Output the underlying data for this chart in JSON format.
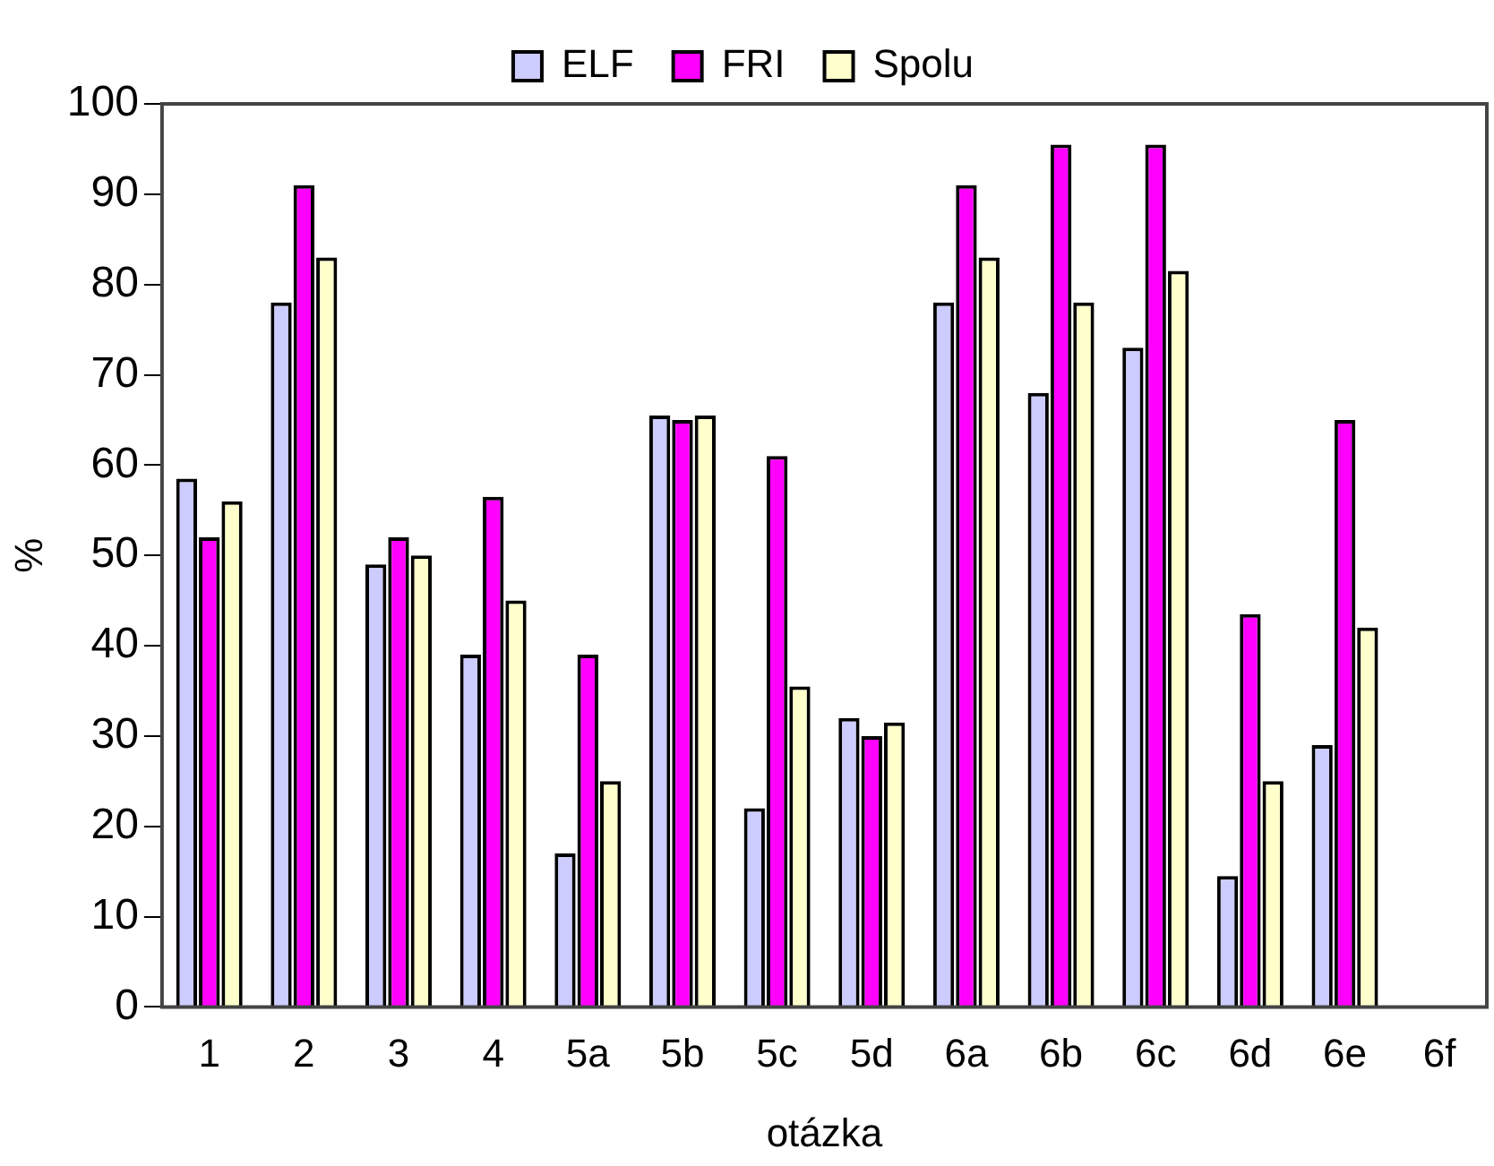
{
  "chart_data": {
    "type": "bar",
    "xlabel": "otázka",
    "ylabel": "%",
    "categories": [
      "1",
      "2",
      "3",
      "4",
      "5a",
      "5b",
      "5c",
      "5d",
      "6a",
      "6b",
      "6c",
      "6d",
      "6e",
      "6f"
    ],
    "series": [
      {
        "name": "ELF",
        "color": "#ccccff",
        "values": [
          58.5,
          78,
          49,
          39,
          17,
          65.5,
          22,
          32,
          78,
          68,
          73,
          14.5,
          29,
          null
        ]
      },
      {
        "name": "FRI",
        "color": "#ff00ff",
        "values": [
          52,
          91,
          52,
          56.5,
          39,
          65,
          61,
          30,
          91,
          95.5,
          95.5,
          43.5,
          65,
          null
        ]
      },
      {
        "name": "Spolu",
        "color": "#ffffcc",
        "values": [
          56,
          83,
          50,
          45,
          25,
          65.5,
          35.5,
          31.5,
          83,
          78,
          81.5,
          25,
          42,
          null
        ]
      }
    ],
    "ylim": [
      0,
      100
    ],
    "yticks": [
      0,
      10,
      20,
      30,
      40,
      50,
      60,
      70,
      80,
      90,
      100
    ],
    "grid": false,
    "legend": "top"
  }
}
